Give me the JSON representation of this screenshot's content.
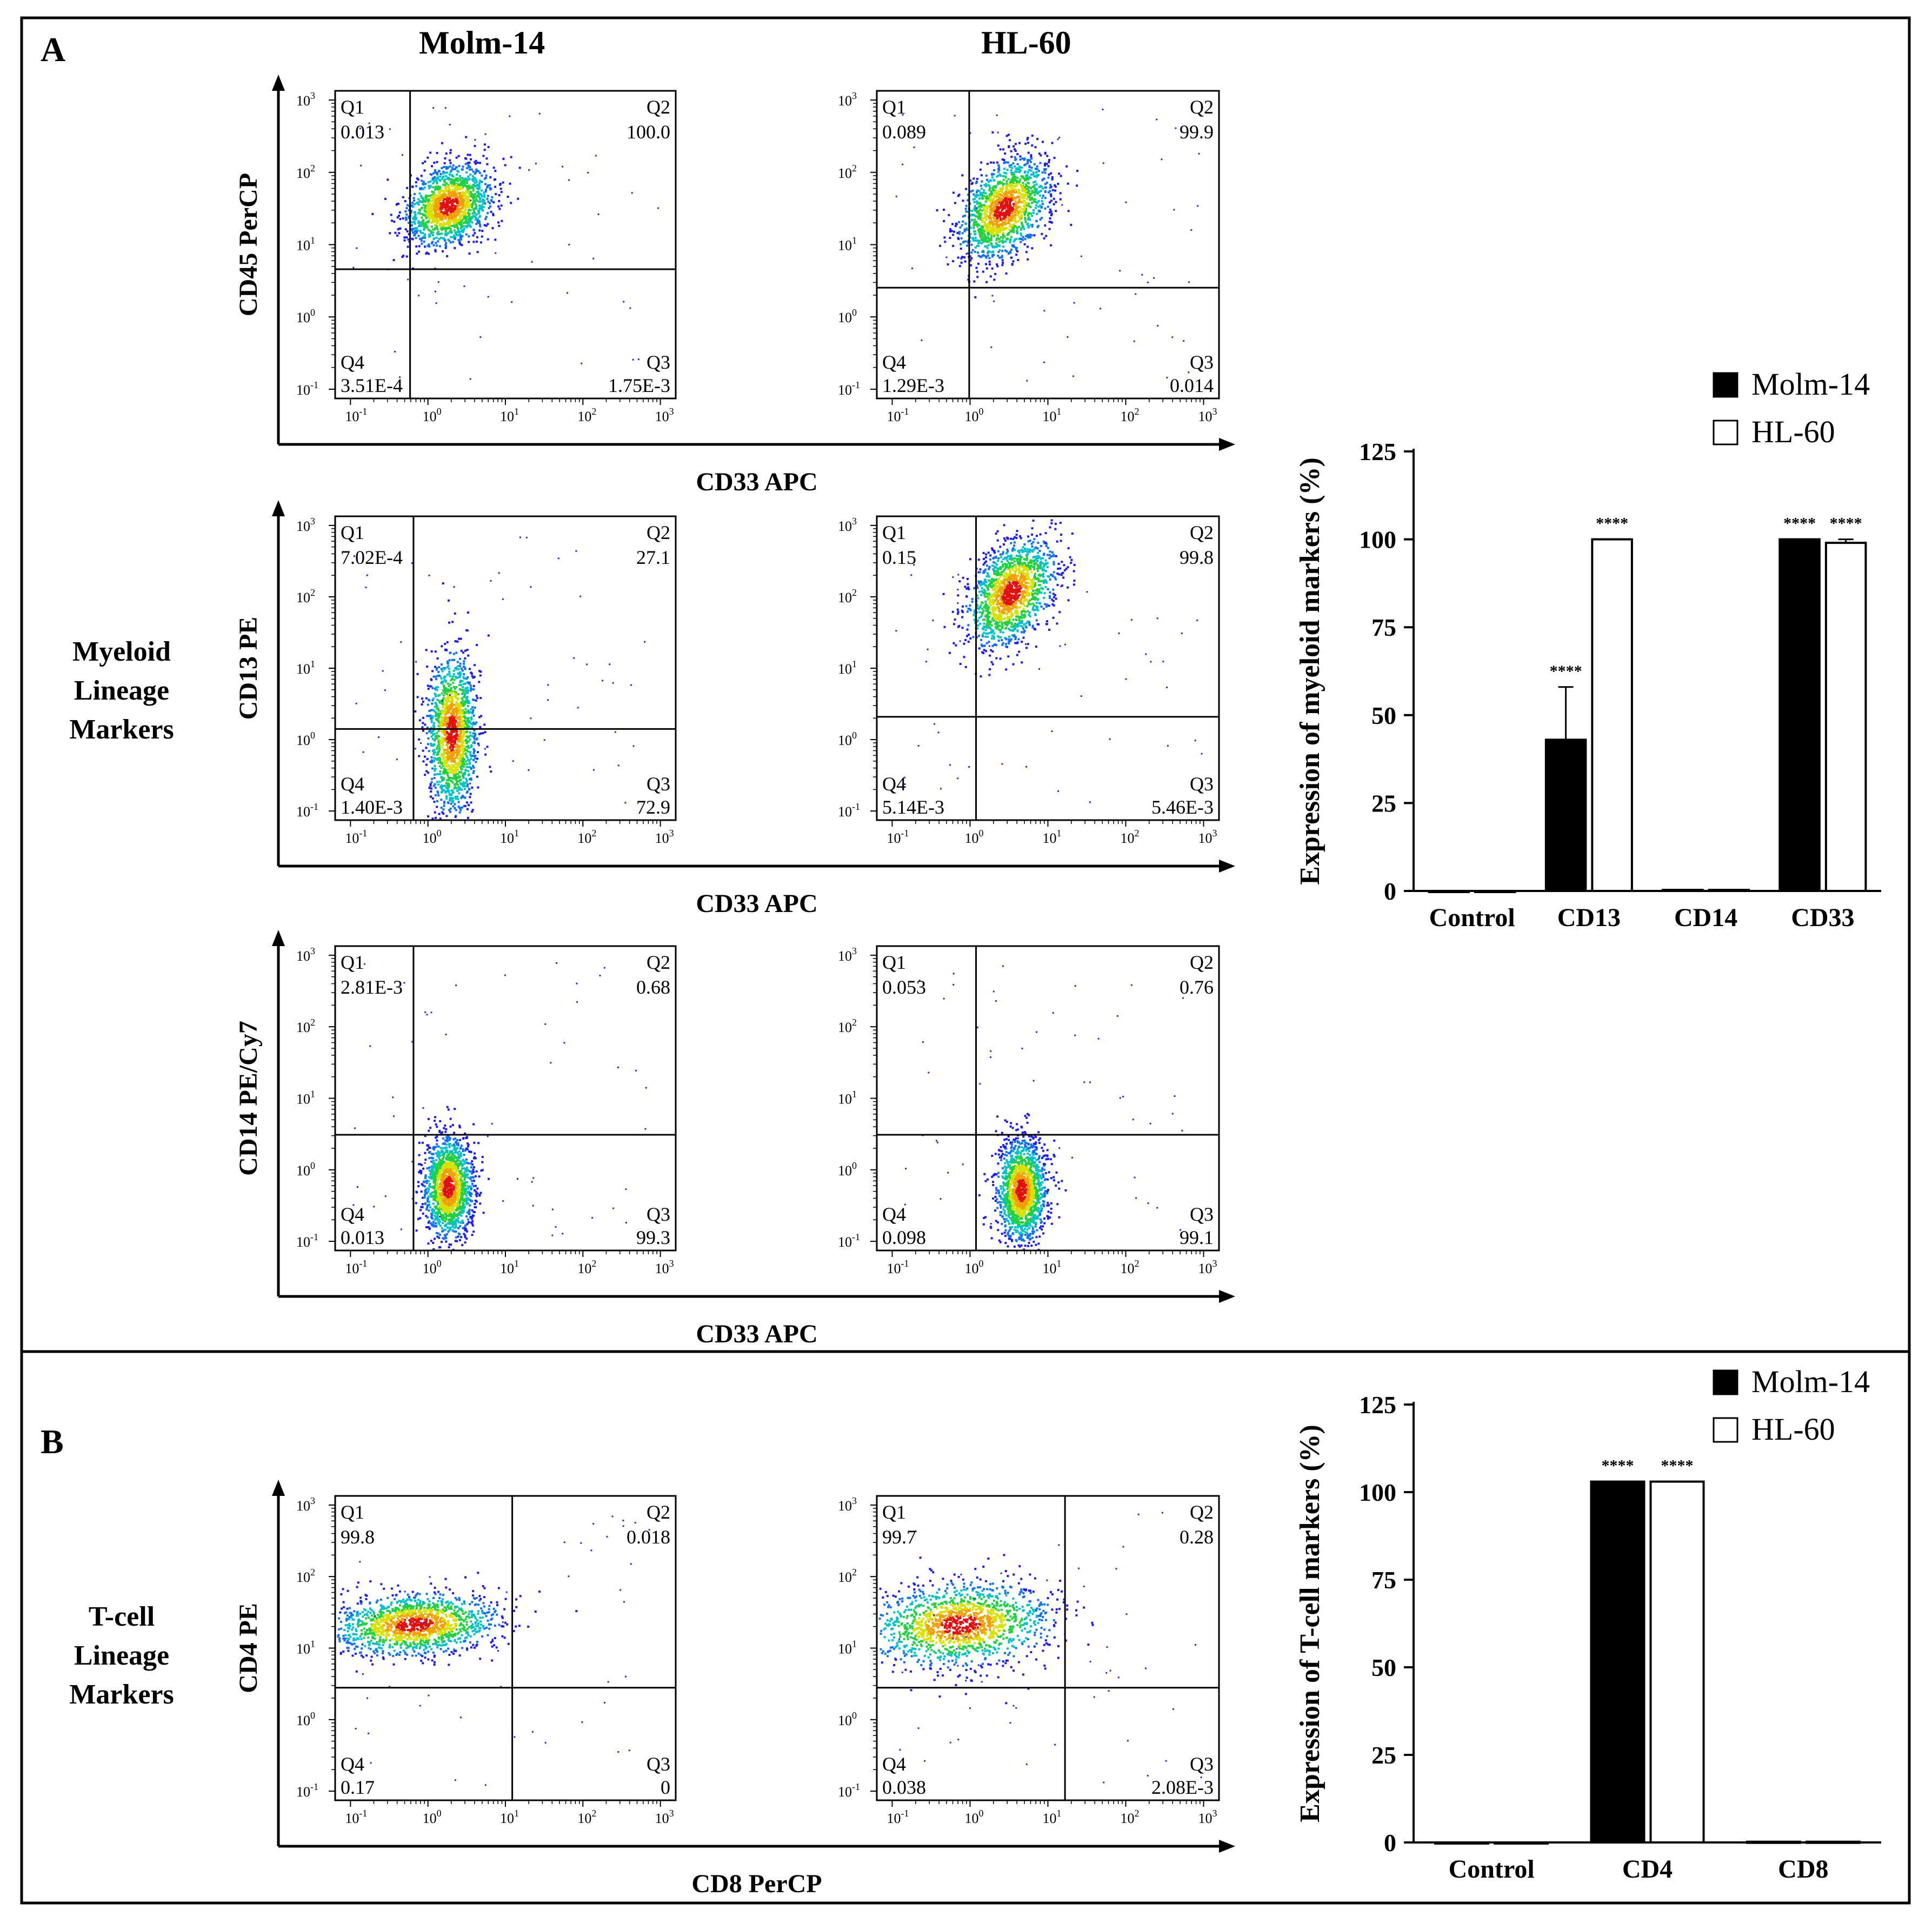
{
  "title_A": "A",
  "title_B": "B",
  "col_headers": [
    "Molm-14",
    "HL-60"
  ],
  "row_labels": {
    "myeloid": [
      "Myeloid",
      "Lineage",
      "Markers"
    ],
    "tcell": [
      "T-cell",
      "Lineage",
      "Markers"
    ]
  },
  "quadrant_names": [
    "Q1",
    "Q2",
    "Q3",
    "Q4"
  ],
  "tick_labels": [
    "10",
    "-1",
    "0",
    "1",
    "2",
    "3"
  ],
  "flow_rows": [
    {
      "ylabel": "CD45 PerCP",
      "xlabel": "CD33 APC",
      "plots": [
        {
          "q1": "0.013",
          "q2": "100.0",
          "q3": "1.75E-3",
          "q4": "3.51E-4"
        },
        {
          "q1": "0.089",
          "q2": "99.9",
          "q3": "0.014",
          "q4": "1.29E-3"
        }
      ]
    },
    {
      "ylabel": "CD13 PE",
      "xlabel": "CD33 APC",
      "plots": [
        {
          "q1": "7.02E-4",
          "q2": "27.1",
          "q3": "72.9",
          "q4": "1.40E-3"
        },
        {
          "q1": "0.15",
          "q2": "99.8",
          "q3": "5.46E-3",
          "q4": "5.14E-3"
        }
      ]
    },
    {
      "ylabel": "CD14 PE/Cy7",
      "xlabel": "CD33 APC",
      "plots": [
        {
          "q1": "2.81E-3",
          "q2": "0.68",
          "q3": "99.3",
          "q4": "0.013"
        },
        {
          "q1": "0.053",
          "q2": "0.76",
          "q3": "99.1",
          "q4": "0.098"
        }
      ]
    },
    {
      "ylabel": "CD4 PE",
      "xlabel": "CD8 PerCP",
      "plots": [
        {
          "q1": "99.8",
          "q2": "0.018",
          "q3": "0",
          "q4": "0.17"
        },
        {
          "q1": "99.7",
          "q2": "0.28",
          "q3": "2.08E-3",
          "q4": "0.038"
        }
      ]
    }
  ],
  "chart_data": [
    {
      "type": "bar",
      "title": "",
      "categories": [
        "Control",
        "CD13",
        "CD14",
        "CD33"
      ],
      "series": [
        {
          "name": "Molm-14",
          "values": [
            0,
            43,
            0.3,
            100
          ],
          "errors": [
            0,
            15,
            0,
            0
          ],
          "sig": [
            "",
            "****",
            "",
            "****"
          ]
        },
        {
          "name": "HL-60",
          "values": [
            0,
            100,
            0.3,
            99
          ],
          "errors": [
            0,
            0,
            0,
            1
          ],
          "sig": [
            "",
            "****",
            "",
            "****"
          ]
        }
      ],
      "xlabel": "",
      "ylabel": "Expression of myeloid markers (%)",
      "ylim": [
        0,
        125
      ],
      "yticks": [
        0,
        25,
        50,
        75,
        100,
        125
      ],
      "legend": "top-right"
    },
    {
      "type": "bar",
      "title": "",
      "categories": [
        "Control",
        "CD4",
        "CD8"
      ],
      "series": [
        {
          "name": "Molm-14",
          "values": [
            0,
            103,
            0.2
          ],
          "errors": [
            0,
            0,
            0
          ],
          "sig": [
            "",
            "****",
            ""
          ]
        },
        {
          "name": "HL-60",
          "values": [
            0,
            103,
            0.2
          ],
          "errors": [
            0,
            0,
            0
          ],
          "sig": [
            "",
            "****",
            ""
          ]
        }
      ],
      "xlabel": "",
      "ylabel": "Expression of T-cell markers (%)",
      "ylim": [
        0,
        125
      ],
      "yticks": [
        0,
        25,
        50,
        75,
        100,
        125
      ],
      "legend": "top-right"
    }
  ]
}
